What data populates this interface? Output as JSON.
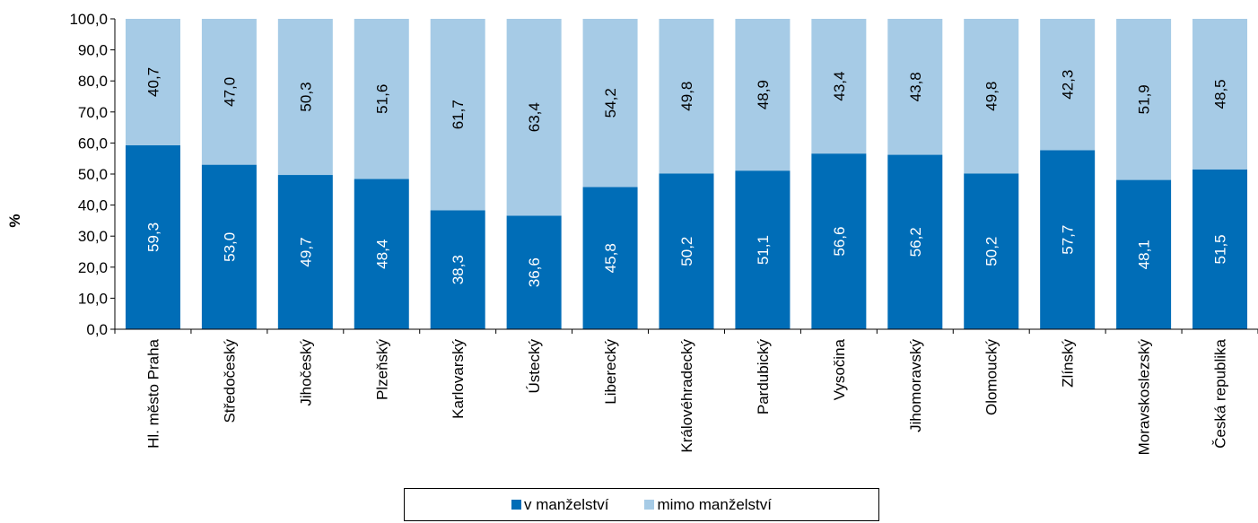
{
  "chart_data": {
    "type": "bar",
    "stacked": true,
    "categories": [
      "Hl. město Praha",
      "Středočeský",
      "Jihočeský",
      "Plzeňský",
      "Karlovarský",
      "Ústecký",
      "Liberecký",
      "Královéhradecký",
      "Pardubický",
      "Vysočina",
      "Jihomoravský",
      "Olomoucký",
      "Zlínský",
      "Moravskoslezský",
      "Česká republika"
    ],
    "series": [
      {
        "name": "v manželství",
        "color": "#006db7",
        "values": [
          59.3,
          53.0,
          49.7,
          48.4,
          38.3,
          36.6,
          45.8,
          50.2,
          51.1,
          56.6,
          56.2,
          50.2,
          57.7,
          48.1,
          51.5
        ],
        "labels": [
          "59,3",
          "53,0",
          "49,7",
          "48,4",
          "38,3",
          "36,6",
          "45,8",
          "50,2",
          "51,1",
          "56,6",
          "56,2",
          "50,2",
          "57,7",
          "48,1",
          "51,5"
        ]
      },
      {
        "name": "mimo manželství",
        "color": "#a6cbe6",
        "values": [
          40.7,
          47.0,
          50.3,
          51.6,
          61.7,
          63.4,
          54.2,
          49.8,
          48.9,
          43.4,
          43.8,
          49.8,
          42.3,
          51.9,
          48.5
        ],
        "labels": [
          "40,7",
          "47,0",
          "50,3",
          "51,6",
          "61,7",
          "63,4",
          "54,2",
          "49,8",
          "48,9",
          "43,4",
          "43,8",
          "49,8",
          "42,3",
          "51,9",
          "48,5"
        ]
      }
    ],
    "ylabel": "%",
    "ylim": [
      0,
      100
    ],
    "yticks": [
      "0,0",
      "10,0",
      "20,0",
      "30,0",
      "40,0",
      "50,0",
      "60,0",
      "70,0",
      "80,0",
      "90,0",
      "100,0"
    ],
    "grid": false,
    "legend_position": "bottom"
  }
}
